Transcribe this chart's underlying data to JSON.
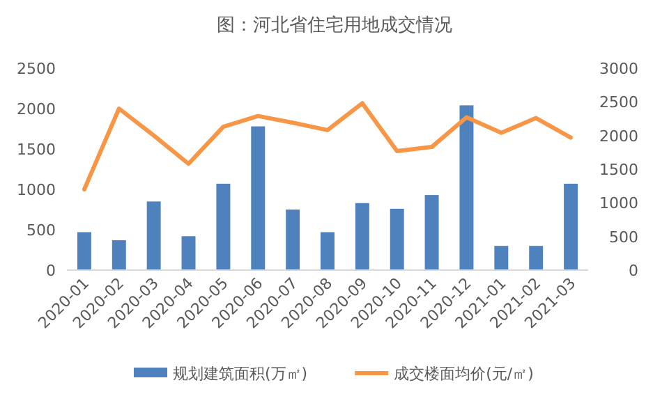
{
  "chart_data": {
    "type": "bar",
    "title": "图：河北省住宅用地成交情况",
    "categories": [
      "2020-01",
      "2020-02",
      "2020-03",
      "2020-04",
      "2020-05",
      "2020-06",
      "2020-07",
      "2020-08",
      "2020-09",
      "2020-10",
      "2020-11",
      "2020-12",
      "2021-01",
      "2021-02",
      "2021-03"
    ],
    "series": [
      {
        "name": "规划建筑面积(万㎡)",
        "color": "#4f81bd",
        "values": [
          470,
          370,
          850,
          420,
          1070,
          1780,
          750,
          470,
          830,
          760,
          930,
          2040,
          300,
          300,
          1070
        ]
      },
      {
        "name": "成交楼面均价(元/㎡)",
        "type": "line",
        "axis": "y2",
        "color": "#f79646",
        "values": [
          1200,
          2400,
          2000,
          1580,
          2130,
          2290,
          2190,
          2080,
          2480,
          1770,
          1830,
          2270,
          2040,
          2260,
          1970
        ]
      }
    ],
    "ylim": [
      0,
      2500
    ],
    "yticks": [
      0,
      500,
      1000,
      1500,
      2000,
      2500
    ],
    "y2lim": [
      0,
      3000
    ],
    "y2ticks": [
      0,
      500,
      1000,
      1500,
      2000,
      2500,
      3000
    ],
    "legend": "bottom",
    "grid": false
  }
}
